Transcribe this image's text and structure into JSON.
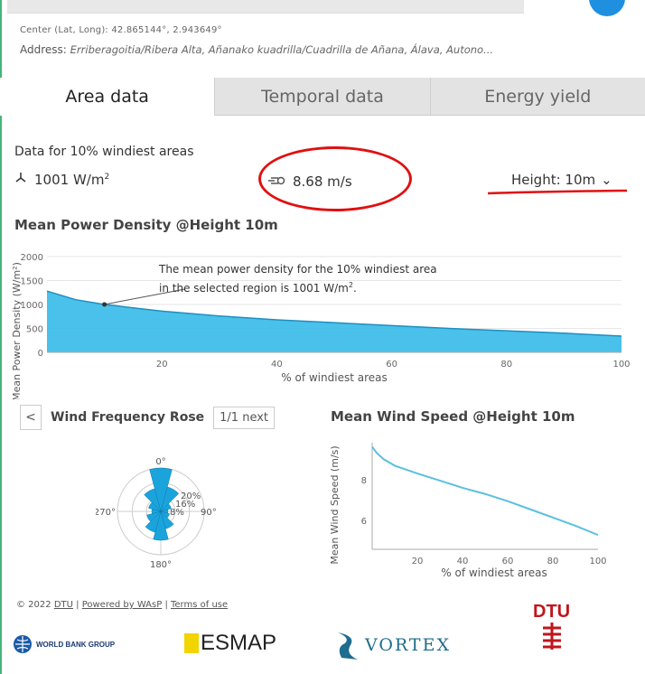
{
  "header": {
    "center_label": "Center (Lat, Long): 42.865144°,  2.943649°",
    "address_prefix": "Address: ",
    "address_value": "Erriberagoitia/Ribera Alta, Añanako kuadrilla/Cuadrilla de Añana, Álava, Autono..."
  },
  "tabs": [
    {
      "label": "Area data",
      "active": true
    },
    {
      "label": "Temporal data",
      "active": false
    },
    {
      "label": "Energy yield",
      "active": false
    }
  ],
  "summary": {
    "heading": "Data for 10% windiest areas",
    "power_value": "1001 W/m",
    "power_sup": "2",
    "speed_value": "8.68 m/s",
    "height_label": "Height: 10m",
    "height_caret": "⌄"
  },
  "power_density": {
    "title": "Mean Power Density @Height 10m",
    "annotation_line1": "The mean power density for the 10% windiest area",
    "annotation_line2": "in the selected region is 1001 W/m",
    "annotation_sup": "2",
    "annotation_end": "."
  },
  "rose": {
    "prev_label": "<",
    "title": "Wind Frequency Rose",
    "page_indicator": "1/1 next",
    "labels": {
      "n": "0°",
      "e": "90°",
      "s": "180°",
      "w": "270°"
    },
    "ring_labels": [
      "20%",
      "16%",
      "8%"
    ]
  },
  "wind_speed": {
    "title": "Mean Wind Speed @Height 10m"
  },
  "footer": {
    "copyright": "© 2022",
    "dtu_link": "DTU",
    "sep1": " | ",
    "powered": "Powered by WAsP",
    "sep2": " | ",
    "terms": "Terms of use"
  },
  "logos": {
    "worldbank": "WORLD BANK GROUP",
    "esmap": "ESMAP",
    "vortex": "VORTEX",
    "dtu": "DTU"
  },
  "colors": {
    "accent_red": "#e01010",
    "area_fill": "#29b6e6",
    "line": "#5bc0de",
    "tab_inactive": "#e3e3e3"
  },
  "chart_data": [
    {
      "type": "area",
      "title": "Mean Power Density @Height 10m",
      "xlabel": "% of windiest areas",
      "ylabel": "Mean Power Density (W/m²)",
      "xlim": [
        0,
        100
      ],
      "ylim": [
        0,
        2000
      ],
      "xticks": [
        20,
        40,
        60,
        80,
        100
      ],
      "yticks": [
        0,
        500,
        1000,
        1500,
        2000
      ],
      "x": [
        0,
        5,
        10,
        15,
        20,
        30,
        40,
        50,
        60,
        70,
        80,
        90,
        100
      ],
      "values": [
        1280,
        1100,
        1001,
        930,
        860,
        760,
        680,
        620,
        560,
        500,
        450,
        400,
        340
      ]
    },
    {
      "type": "line",
      "title": "Mean Wind Speed @Height 10m",
      "xlabel": "% of windiest areas",
      "ylabel": "Mean Wind Speed (m/s)",
      "xlim": [
        0,
        100
      ],
      "ylim": [
        4.6,
        9.8
      ],
      "xticks": [
        20,
        40,
        60,
        80,
        100
      ],
      "yticks": [
        6,
        8
      ],
      "x": [
        0,
        2,
        5,
        10,
        20,
        30,
        40,
        50,
        60,
        70,
        80,
        90,
        100
      ],
      "values": [
        9.6,
        9.3,
        9.0,
        8.68,
        8.3,
        7.95,
        7.6,
        7.3,
        6.95,
        6.55,
        6.15,
        5.75,
        5.3
      ]
    },
    {
      "type": "rose",
      "title": "Wind Frequency Rose",
      "directions_deg": [
        0,
        30,
        60,
        90,
        120,
        150,
        180,
        210,
        240,
        270,
        300,
        330
      ],
      "values": [
        24,
        14,
        6,
        4,
        5,
        10,
        16,
        12,
        8,
        5,
        7,
        13
      ],
      "rings": [
        8,
        16,
        20
      ]
    }
  ]
}
